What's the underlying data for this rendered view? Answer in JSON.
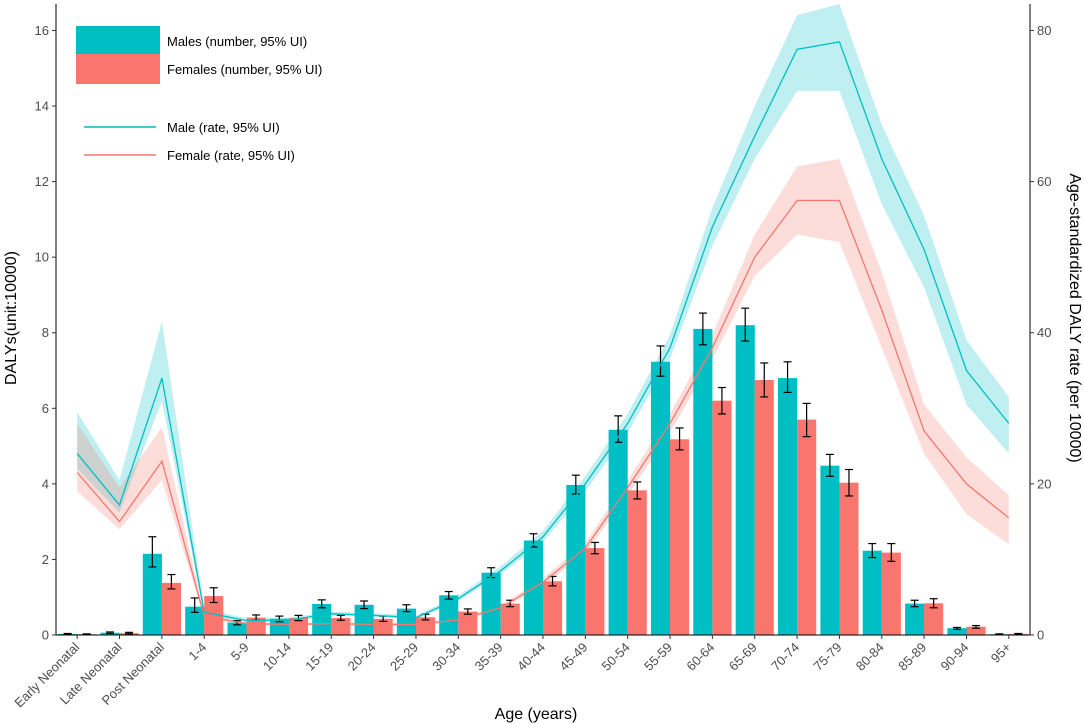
{
  "chart_data": {
    "type": "bar",
    "title": "",
    "xlabel": "Age (years)",
    "ylabel": "DALYs(unit:10000)",
    "y2label": "Age-standardized DALY rate (per 10000)",
    "ylim": [
      0,
      16.7
    ],
    "y2lim": [
      0,
      83.5
    ],
    "yticks": [
      0,
      2,
      4,
      6,
      8,
      10,
      12,
      14,
      16
    ],
    "y2ticks": [
      0,
      20,
      40,
      60,
      80
    ],
    "categories": [
      "Early Neonatal",
      "Late Neonatal",
      "Post Neonatal",
      "1-4",
      "5-9",
      "10-14",
      "15-19",
      "20-24",
      "25-29",
      "30-34",
      "35-39",
      "40-44",
      "45-49",
      "50-54",
      "55-59",
      "60-64",
      "65-69",
      "70-74",
      "75-79",
      "80-84",
      "85-89",
      "90-94",
      "95+"
    ],
    "series": [
      {
        "name": "Males (number, 95% UI)",
        "kind": "bar",
        "color": "#00BFC4",
        "values": [
          0.03,
          0.06,
          2.15,
          0.75,
          0.33,
          0.43,
          0.82,
          0.8,
          0.7,
          1.05,
          1.65,
          2.5,
          3.97,
          5.43,
          7.23,
          8.1,
          8.2,
          6.8,
          4.48,
          2.23,
          0.83,
          0.18,
          0.02
        ],
        "lower": [
          0.02,
          0.04,
          1.8,
          0.6,
          0.27,
          0.35,
          0.72,
          0.7,
          0.62,
          0.95,
          1.52,
          2.33,
          3.73,
          5.1,
          6.85,
          7.68,
          7.78,
          6.42,
          4.2,
          2.05,
          0.75,
          0.15,
          0.01
        ],
        "upper": [
          0.04,
          0.08,
          2.6,
          0.98,
          0.38,
          0.5,
          0.93,
          0.9,
          0.8,
          1.15,
          1.78,
          2.68,
          4.23,
          5.8,
          7.65,
          8.52,
          8.65,
          7.23,
          4.78,
          2.42,
          0.92,
          0.2,
          0.03
        ]
      },
      {
        "name": "Females (number, 95% UI)",
        "kind": "bar",
        "color": "#F8766D",
        "values": [
          0.02,
          0.05,
          1.38,
          1.03,
          0.46,
          0.45,
          0.45,
          0.43,
          0.47,
          0.62,
          0.83,
          1.42,
          2.3,
          3.83,
          5.18,
          6.2,
          6.75,
          5.7,
          4.03,
          2.18,
          0.84,
          0.22,
          0.03
        ],
        "lower": [
          0.01,
          0.03,
          1.22,
          0.86,
          0.39,
          0.38,
          0.39,
          0.36,
          0.4,
          0.55,
          0.75,
          1.3,
          2.15,
          3.6,
          4.9,
          5.85,
          6.3,
          5.25,
          3.68,
          1.95,
          0.72,
          0.18,
          0.02
        ],
        "upper": [
          0.03,
          0.07,
          1.6,
          1.25,
          0.53,
          0.52,
          0.52,
          0.5,
          0.55,
          0.69,
          0.92,
          1.55,
          2.45,
          4.05,
          5.48,
          6.55,
          7.2,
          6.13,
          4.38,
          2.42,
          0.96,
          0.25,
          0.04
        ]
      },
      {
        "name": "Male (rate, 95% UI)",
        "kind": "line",
        "axis": "right",
        "color": "#00BFC4",
        "values": [
          24.0,
          17.2,
          34.0,
          3.0,
          1.9,
          2.0,
          2.8,
          2.6,
          2.3,
          4.8,
          8.5,
          13.0,
          20.0,
          28.0,
          38.0,
          54.0,
          66.0,
          77.5,
          78.5,
          63.0,
          51.0,
          35.0,
          28.0
        ],
        "lower": [
          22.0,
          16.2,
          31.0,
          2.6,
          1.7,
          1.8,
          2.6,
          2.4,
          2.1,
          4.5,
          8.0,
          12.3,
          19.0,
          26.8,
          36.5,
          51.5,
          63.0,
          72.0,
          72.0,
          57.0,
          46.0,
          30.5,
          24.0
        ],
        "upper": [
          29.5,
          20.5,
          41.5,
          3.5,
          2.2,
          2.3,
          3.1,
          2.9,
          2.6,
          5.2,
          9.1,
          13.8,
          21.0,
          29.3,
          39.7,
          56.5,
          70.0,
          82.0,
          83.5,
          67.5,
          55.5,
          39.0,
          31.5
        ]
      },
      {
        "name": "Female (rate, 95% UI)",
        "kind": "line",
        "axis": "right",
        "color": "#F8766D",
        "values": [
          21.5,
          15.0,
          23.0,
          2.5,
          1.5,
          1.4,
          1.5,
          1.4,
          1.4,
          2.0,
          3.6,
          7.0,
          11.5,
          19.5,
          28.0,
          38.0,
          50.0,
          57.5,
          57.5,
          43.0,
          27.0,
          20.0,
          15.5
        ],
        "lower": [
          19.0,
          14.0,
          20.5,
          2.2,
          1.3,
          1.2,
          1.3,
          1.2,
          1.2,
          1.8,
          3.3,
          6.5,
          10.8,
          18.5,
          26.8,
          36.5,
          47.5,
          53.0,
          52.0,
          38.0,
          24.0,
          16.0,
          12.0
        ],
        "upper": [
          28.0,
          19.5,
          27.5,
          2.8,
          1.7,
          1.6,
          1.7,
          1.6,
          1.6,
          2.2,
          3.9,
          7.5,
          12.2,
          20.5,
          29.2,
          39.7,
          53.0,
          62.0,
          63.0,
          48.0,
          30.5,
          23.5,
          18.5
        ]
      }
    ],
    "legend": {
      "position": "top-left",
      "items": [
        {
          "label": "Males (number, 95% UI)",
          "symbol": "box",
          "color": "#00BFC4"
        },
        {
          "label": "Females (number, 95% UI)",
          "symbol": "box",
          "color": "#F8766D"
        },
        {
          "label": "Male (rate, 95% UI)",
          "symbol": "line",
          "color": "#00BFC4"
        },
        {
          "label": "Female (rate, 95% UI)",
          "symbol": "line",
          "color": "#F8766D"
        }
      ]
    },
    "grid": false
  }
}
